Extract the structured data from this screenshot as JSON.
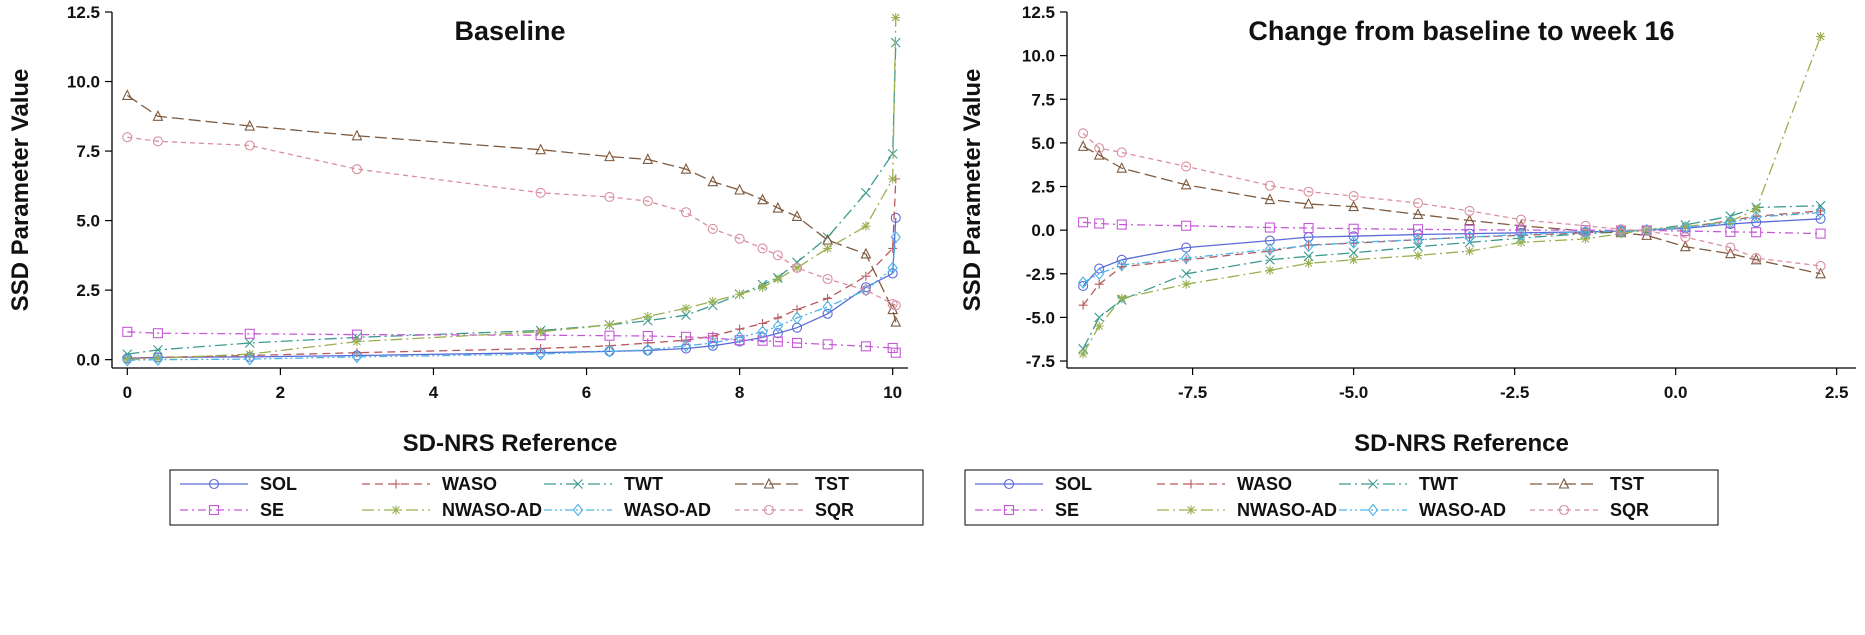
{
  "series_style": {
    "SOL": {
      "color": "#5b6bd6",
      "dash": "",
      "marker": "circle"
    },
    "WASO": {
      "color": "#b85a5f",
      "dash": "8,5",
      "marker": "plus"
    },
    "TWT": {
      "color": "#3c9a8f",
      "dash": "12,4,2,4",
      "marker": "x"
    },
    "TST": {
      "color": "#7e5a3e",
      "dash": "12,5",
      "marker": "triangle"
    },
    "SE": {
      "color": "#c65ad6",
      "dash": "8,4,2,4",
      "marker": "square"
    },
    "NWASO-AD": {
      "color": "#9ab04f",
      "dash": "12,4,2,4",
      "marker": "asterisk"
    },
    "WASO-AD": {
      "color": "#4db3e6",
      "dash": "8,3,2,3,2,3",
      "marker": "diamond"
    },
    "SQR": {
      "color": "#d98f9f",
      "dash": "5,4",
      "marker": "circle"
    }
  },
  "legend_rows": [
    [
      "SOL",
      "WASO",
      "TWT",
      "TST"
    ],
    [
      "SE",
      "NWASO-AD",
      "WASO-AD",
      "SQR"
    ]
  ],
  "chart_data": [
    {
      "type": "line",
      "title": "Baseline",
      "xlabel": "SD-NRS Reference",
      "ylabel": "SSD Parameter Value",
      "xlim": [
        -0.2,
        10.2
      ],
      "ylim": [
        -0.3,
        12.5
      ],
      "xticks": [
        0,
        2,
        4,
        6,
        8,
        10
      ],
      "xtick_labels": [
        "0",
        "2",
        "4",
        "6",
        "8",
        "10"
      ],
      "yticks": [
        0,
        2.5,
        5,
        7.5,
        10,
        12.5
      ],
      "ytick_labels": [
        "0.0",
        "2.5",
        "5.0",
        "7.5",
        "10.0",
        "12.5"
      ],
      "x": [
        0,
        0.4,
        1.6,
        3,
        5.4,
        6.3,
        6.8,
        7.3,
        7.65,
        8,
        8.3,
        8.5,
        8.75,
        9.15,
        9.65,
        10,
        10.04
      ],
      "series": [
        {
          "name": "SOL",
          "values": [
            0.05,
            0.08,
            0.1,
            0.15,
            0.25,
            0.3,
            0.33,
            0.4,
            0.5,
            0.65,
            0.8,
            0.95,
            1.15,
            1.65,
            2.6,
            3.1,
            5.1
          ]
        },
        {
          "name": "WASO",
          "values": [
            0.05,
            0.08,
            0.15,
            0.25,
            0.4,
            0.5,
            0.6,
            0.7,
            0.85,
            1.1,
            1.3,
            1.5,
            1.8,
            2.2,
            3.0,
            4.0,
            6.5
          ]
        },
        {
          "name": "TWT",
          "values": [
            0.2,
            0.35,
            0.6,
            0.8,
            1.05,
            1.25,
            1.4,
            1.6,
            1.95,
            2.35,
            2.7,
            2.95,
            3.5,
            4.4,
            6.0,
            7.4,
            11.4
          ]
        },
        {
          "name": "TST",
          "values": [
            9.5,
            8.75,
            8.4,
            8.05,
            7.55,
            7.3,
            7.2,
            6.85,
            6.4,
            6.1,
            5.75,
            5.45,
            5.15,
            4.3,
            3.8,
            1.8,
            1.35
          ]
        },
        {
          "name": "SE",
          "values": [
            1.0,
            0.95,
            0.93,
            0.9,
            0.88,
            0.86,
            0.85,
            0.82,
            0.78,
            0.7,
            0.68,
            0.65,
            0.6,
            0.55,
            0.48,
            0.42,
            0.25
          ]
        },
        {
          "name": "NWASO-AD",
          "values": [
            0.0,
            0.05,
            0.2,
            0.65,
            1.0,
            1.25,
            1.55,
            1.85,
            2.1,
            2.35,
            2.6,
            2.9,
            3.3,
            4.0,
            4.8,
            6.5,
            12.3
          ]
        },
        {
          "name": "WASO-AD",
          "values": [
            -0.02,
            0.0,
            0.02,
            0.1,
            0.2,
            0.3,
            0.35,
            0.5,
            0.6,
            0.8,
            1.0,
            1.2,
            1.5,
            1.9,
            2.5,
            3.3,
            4.4
          ]
        },
        {
          "name": "SQR",
          "values": [
            8.0,
            7.85,
            7.7,
            6.85,
            6.0,
            5.85,
            5.7,
            5.3,
            4.7,
            4.35,
            4.0,
            3.75,
            3.3,
            2.9,
            2.5,
            2.0,
            1.95
          ]
        }
      ]
    },
    {
      "type": "line",
      "title": "Change from baseline to week 16",
      "xlabel": "SD-NRS Reference",
      "ylabel": "SSD Parameter Value",
      "xlim": [
        -9.45,
        2.8
      ],
      "ylim": [
        -7.9,
        12.5
      ],
      "xticks": [
        -7.5,
        -5,
        -2.5,
        0,
        2.5
      ],
      "xtick_labels": [
        "-7.5",
        "-5.0",
        "-2.5",
        "0.0",
        "2.5"
      ],
      "yticks": [
        -7.5,
        -5,
        -2.5,
        0,
        2.5,
        5,
        7.5,
        10,
        12.5
      ],
      "ytick_labels": [
        "-7.5",
        "-5.0",
        "-2.5",
        "0.0",
        "2.5",
        "5.0",
        "7.5",
        "10.0",
        "12.5"
      ],
      "x": [
        -9.2,
        -8.95,
        -8.6,
        -7.6,
        -6.3,
        -5.7,
        -5.0,
        -4.0,
        -3.2,
        -2.4,
        -1.4,
        -0.85,
        -0.45,
        0.15,
        0.85,
        1.25,
        2.25
      ],
      "series": [
        {
          "name": "SOL",
          "values": [
            -3.2,
            -2.2,
            -1.7,
            -1.0,
            -0.6,
            -0.4,
            -0.35,
            -0.25,
            -0.2,
            -0.15,
            -0.1,
            -0.05,
            0.0,
            0.1,
            0.35,
            0.45,
            0.65
          ]
        },
        {
          "name": "WASO",
          "values": [
            -4.3,
            -3.1,
            -2.1,
            -1.7,
            -1.2,
            -0.85,
            -0.75,
            -0.55,
            -0.4,
            -0.3,
            -0.15,
            -0.05,
            0.0,
            0.15,
            0.55,
            0.8,
            1.1
          ]
        },
        {
          "name": "TWT",
          "values": [
            -6.8,
            -5.0,
            -4.0,
            -2.5,
            -1.7,
            -1.5,
            -1.3,
            -0.95,
            -0.7,
            -0.45,
            -0.2,
            -0.1,
            0.0,
            0.3,
            0.8,
            1.3,
            1.4
          ]
        },
        {
          "name": "TST",
          "values": [
            4.8,
            4.3,
            3.55,
            2.6,
            1.75,
            1.5,
            1.35,
            0.9,
            0.55,
            0.25,
            -0.05,
            -0.15,
            -0.3,
            -0.95,
            -1.35,
            -1.7,
            -2.5
          ]
        },
        {
          "name": "SE",
          "values": [
            0.45,
            0.38,
            0.32,
            0.25,
            0.15,
            0.12,
            0.08,
            0.05,
            0.02,
            0.0,
            0.0,
            -0.02,
            -0.02,
            -0.05,
            -0.1,
            -0.12,
            -0.2
          ]
        },
        {
          "name": "NWASO-AD",
          "values": [
            -7.1,
            -5.5,
            -3.9,
            -3.1,
            -2.3,
            -1.9,
            -1.7,
            -1.45,
            -1.2,
            -0.7,
            -0.5,
            -0.2,
            0.0,
            0.2,
            0.5,
            1.2,
            11.1
          ]
        },
        {
          "name": "WASO-AD",
          "values": [
            -3.0,
            -2.5,
            -2.0,
            -1.6,
            -1.1,
            -0.9,
            -0.7,
            -0.55,
            -0.4,
            -0.25,
            -0.1,
            -0.05,
            0.0,
            0.15,
            0.45,
            0.75,
            1.0
          ]
        },
        {
          "name": "SQR",
          "values": [
            5.55,
            4.7,
            4.45,
            3.65,
            2.55,
            2.2,
            1.95,
            1.55,
            1.1,
            0.6,
            0.25,
            0.05,
            -0.05,
            -0.4,
            -1.0,
            -1.6,
            -2.05
          ]
        }
      ]
    }
  ]
}
